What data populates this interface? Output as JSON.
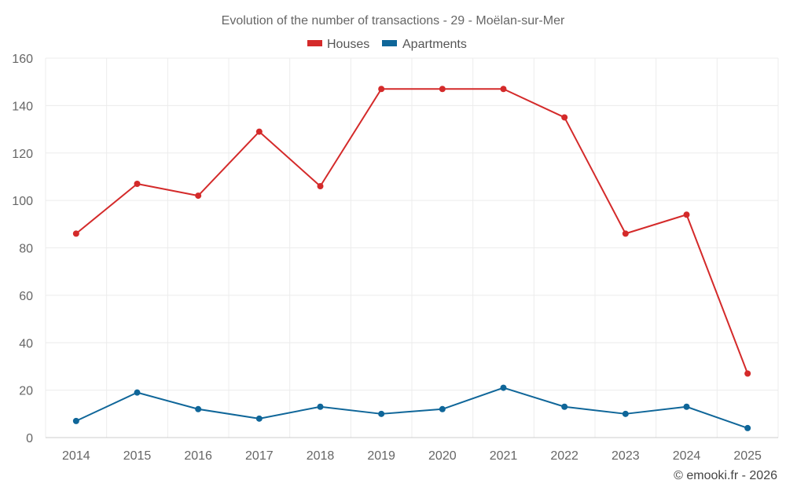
{
  "chart_data": {
    "type": "line",
    "title": "Evolution of the number of transactions - 29 - Moëlan-sur-Mer",
    "categories": [
      "2014",
      "2015",
      "2016",
      "2017",
      "2018",
      "2019",
      "2020",
      "2021",
      "2022",
      "2023",
      "2024",
      "2025"
    ],
    "series": [
      {
        "name": "Houses",
        "color": "#d42a2a",
        "values": [
          86,
          107,
          102,
          129,
          106,
          147,
          147,
          147,
          135,
          86,
          94,
          27
        ]
      },
      {
        "name": "Apartments",
        "color": "#0f6699",
        "values": [
          7,
          19,
          12,
          8,
          13,
          10,
          12,
          21,
          13,
          10,
          13,
          4
        ]
      }
    ],
    "ylim": [
      0,
      160
    ],
    "yticks": [
      0,
      20,
      40,
      60,
      80,
      100,
      120,
      140,
      160
    ],
    "xlabel": "",
    "ylabel": "",
    "grid": true,
    "legend_position": "top-center"
  },
  "credit": "© emooki.fr - 2026"
}
